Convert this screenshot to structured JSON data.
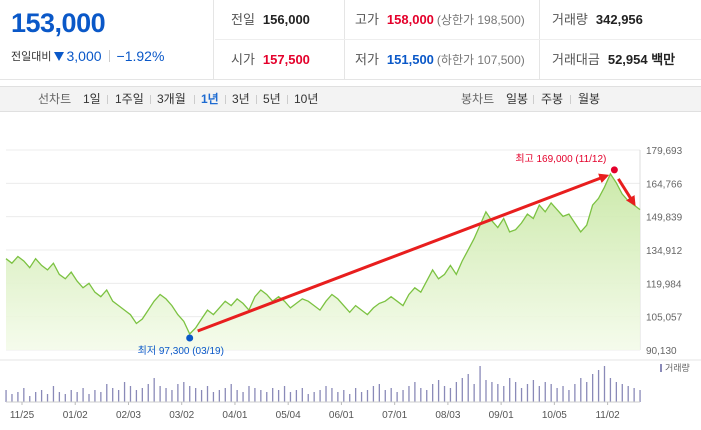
{
  "quote": {
    "price": "153,000",
    "change_label": "전일대비",
    "change": "3,000",
    "change_pct": "−1.92%",
    "colors": {
      "up": "#e4002b",
      "down": "#0a58c8"
    }
  },
  "stats": {
    "prev_close": {
      "label": "전일",
      "value": "156,000"
    },
    "high": {
      "label": "고가",
      "value": "158,000",
      "limit_label": "(상한가 198,500)"
    },
    "volume": {
      "label": "거래량",
      "value": "342,956"
    },
    "open": {
      "label": "시가",
      "value": "157,500"
    },
    "low": {
      "label": "저가",
      "value": "151,500",
      "limit_label": "(하한가 107,500)"
    },
    "amount": {
      "label": "거래대금",
      "value": "52,954 백만"
    }
  },
  "toolbar": {
    "line_label": "선차트",
    "line_options": [
      "1일",
      "1주일",
      "3개월",
      "1년",
      "3년",
      "5년",
      "10년"
    ],
    "active_line_option": "1년",
    "candle_label": "봉차트",
    "candle_options": [
      "일봉",
      "주봉",
      "월봉"
    ]
  },
  "chart_data": {
    "type": "area",
    "y_ticks": [
      "179,693",
      "164,766",
      "149,839",
      "134,912",
      "119,984",
      "105,057",
      "90,130"
    ],
    "ylim": [
      90130,
      179693
    ],
    "x_ticks": [
      "11/25",
      "01/02",
      "02/03",
      "03/02",
      "04/01",
      "05/04",
      "06/01",
      "07/01",
      "08/03",
      "09/01",
      "10/05",
      "11/02"
    ],
    "high_annotation": {
      "text": "최고 169,000 (11/12)",
      "value": 169000
    },
    "low_annotation": {
      "text": "최저 97,300 (03/19)",
      "value": 97300
    },
    "volume_label": "거래량",
    "line_color": "#7cc242",
    "fill_color": "#dff2c8",
    "arrow_color": "#e81e1e",
    "values": [
      131000,
      129000,
      132000,
      130000,
      127000,
      131000,
      128000,
      126000,
      129000,
      124000,
      122000,
      125000,
      121000,
      118000,
      120000,
      116000,
      114000,
      117000,
      112000,
      110000,
      108000,
      106000,
      102000,
      104000,
      108000,
      112000,
      115000,
      113000,
      110000,
      106000,
      103000,
      97300,
      100000,
      104000,
      108000,
      106000,
      109000,
      112000,
      110000,
      113000,
      111000,
      108000,
      114000,
      117000,
      115000,
      112000,
      114000,
      112000,
      109000,
      111000,
      113000,
      112000,
      110000,
      108000,
      112000,
      115000,
      113000,
      110000,
      107000,
      110000,
      108000,
      106000,
      109000,
      111000,
      112000,
      114000,
      112000,
      110000,
      115000,
      118000,
      116000,
      121000,
      126000,
      122000,
      124000,
      128000,
      124000,
      130000,
      135000,
      140000,
      146000,
      152000,
      148000,
      145000,
      149000,
      143000,
      144000,
      147000,
      151000,
      149000,
      155000,
      152000,
      156000,
      153000,
      150000,
      151000,
      147000,
      143000,
      146000,
      155000,
      158000,
      163000,
      169000,
      165000,
      160000,
      157000,
      155000,
      153000
    ],
    "volume": [
      6,
      4,
      5,
      7,
      3,
      5,
      6,
      4,
      8,
      5,
      4,
      6,
      5,
      7,
      4,
      6,
      5,
      9,
      7,
      6,
      10,
      8,
      6,
      7,
      9,
      12,
      8,
      7,
      6,
      9,
      10,
      8,
      7,
      6,
      8,
      5,
      6,
      7,
      9,
      6,
      5,
      8,
      7,
      6,
      5,
      7,
      6,
      8,
      5,
      6,
      7,
      4,
      5,
      6,
      8,
      7,
      5,
      6,
      4,
      7,
      5,
      6,
      8,
      9,
      6,
      7,
      5,
      6,
      8,
      10,
      7,
      6,
      9,
      11,
      8,
      7,
      10,
      12,
      14,
      9,
      18,
      11,
      10,
      9,
      8,
      12,
      10,
      7,
      9,
      11,
      8,
      10,
      9,
      7,
      8,
      6,
      9,
      12,
      10,
      14,
      16,
      18,
      12,
      10,
      9,
      8,
      7,
      6
    ]
  }
}
